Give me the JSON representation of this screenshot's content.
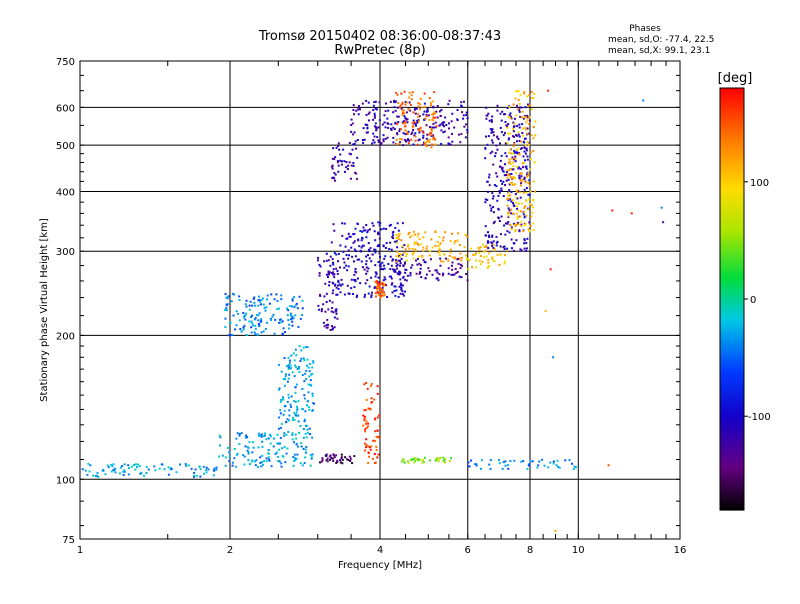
{
  "chart_data": {
    "type": "scatter",
    "title": "Tromsø 20150402 08:36:00-08:37:43",
    "subtitle": "RwPretec (8p)",
    "xlabel": "Frequency [MHz]",
    "ylabel": "Stationary phase Virtual Height [km]",
    "x_scale": "log",
    "y_scale": "log",
    "xlim": [
      1,
      16
    ],
    "ylim": [
      75,
      750
    ],
    "x_ticks": [
      1,
      2,
      4,
      6,
      8,
      10,
      16
    ],
    "y_ticks": [
      75,
      100,
      200,
      300,
      400,
      500,
      600,
      750
    ],
    "x_gridlines": [
      2,
      4,
      6,
      8,
      10
    ],
    "y_gridlines": [
      100,
      200,
      300,
      400,
      500,
      600
    ],
    "grid": true,
    "phases_box": {
      "title": "Phases",
      "line_o": "mean, sd,O: -77.4, 22.5",
      "line_x": "mean, sd,X:  99.1, 23.1"
    },
    "colorbar": {
      "label": "[deg]",
      "range": [
        -180,
        180
      ],
      "ticks": [
        100,
        0,
        -100
      ],
      "colormap": "rainbow"
    },
    "trace_regions": [
      {
        "x_range": [
          1.0,
          1.9
        ],
        "y_range": [
          101,
          108
        ],
        "phase": -30
      },
      {
        "x_range": [
          1.9,
          2.95
        ],
        "y_range": [
          106,
          125
        ],
        "phase": -30
      },
      {
        "x_range": [
          2.5,
          2.95
        ],
        "y_range": [
          125,
          190
        ],
        "phase": -30
      },
      {
        "x_range": [
          1.95,
          2.8
        ],
        "y_range": [
          200,
          245
        ],
        "phase": -40
      },
      {
        "x_range": [
          3.0,
          3.3
        ],
        "y_range": [
          205,
          300
        ],
        "phase": -120
      },
      {
        "x_range": [
          3.2,
          4.5
        ],
        "y_range": [
          240,
          345
        ],
        "phase": -105
      },
      {
        "x_range": [
          3.9,
          4.1
        ],
        "y_range": [
          240,
          260
        ],
        "phase": 150
      },
      {
        "x_range": [
          4.3,
          6.0
        ],
        "y_range": [
          285,
          330
        ],
        "phase": 110
      },
      {
        "x_range": [
          4.3,
          6.0
        ],
        "y_range": [
          260,
          290
        ],
        "phase": -125
      },
      {
        "x_range": [
          5.8,
          7.2
        ],
        "y_range": [
          275,
          310
        ],
        "phase": 100
      },
      {
        "x_range": [
          6.5,
          8.0
        ],
        "y_range": [
          300,
          610
        ],
        "phase": -110
      },
      {
        "x_range": [
          7.2,
          8.2
        ],
        "y_range": [
          330,
          650
        ],
        "phase": 110
      },
      {
        "x_range": [
          3.5,
          6.0
        ],
        "y_range": [
          500,
          620
        ],
        "phase": -115
      },
      {
        "x_range": [
          3.2,
          3.6
        ],
        "y_range": [
          420,
          510
        ],
        "phase": -120
      },
      {
        "x_range": [
          4.3,
          5.2
        ],
        "y_range": [
          495,
          650
        ],
        "phase": 140
      },
      {
        "x_range": [
          3.0,
          3.6
        ],
        "y_range": [
          108,
          113
        ],
        "phase": -150
      },
      {
        "x_range": [
          4.4,
          5.6
        ],
        "y_range": [
          108,
          111
        ],
        "phase": 50
      },
      {
        "x_range": [
          3.7,
          4.0
        ],
        "y_range": [
          108,
          160
        ],
        "phase": 160
      },
      {
        "x_range": [
          6.0,
          10.0
        ],
        "y_range": [
          105,
          110
        ],
        "phase": -40
      }
    ],
    "isolated_points": [
      {
        "x": 13.5,
        "y": 620,
        "phase": -40
      },
      {
        "x": 11.7,
        "y": 365,
        "phase": 170
      },
      {
        "x": 12.8,
        "y": 360,
        "phase": 170
      },
      {
        "x": 14.8,
        "y": 345,
        "phase": -130
      },
      {
        "x": 14.7,
        "y": 370,
        "phase": -40
      },
      {
        "x": 8.8,
        "y": 275,
        "phase": 170
      },
      {
        "x": 8.6,
        "y": 225,
        "phase": 110
      },
      {
        "x": 8.9,
        "y": 180,
        "phase": -40
      },
      {
        "x": 9.0,
        "y": 78,
        "phase": 120
      },
      {
        "x": 11.5,
        "y": 107,
        "phase": 150
      },
      {
        "x": 8.7,
        "y": 650,
        "phase": 165
      }
    ]
  }
}
